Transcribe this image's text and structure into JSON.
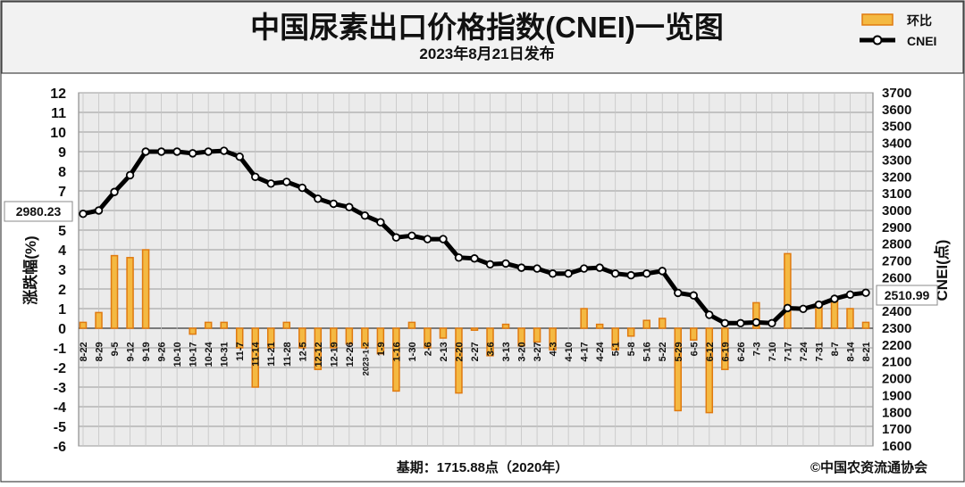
{
  "header": {
    "title": "中国尿素出口价格指数(CNEI)一览图",
    "subtitle": "2023年8月21日发布"
  },
  "legend": {
    "items": [
      {
        "label": "环比",
        "kind": "bar"
      },
      {
        "label": "CNEI",
        "kind": "line"
      }
    ],
    "placement": "top-right"
  },
  "footer": {
    "base_note": "基期：1715.88点（2020年）",
    "copyright": "©中国农资流通协会"
  },
  "callouts": {
    "start_value": "2980.23",
    "end_value": "2510.99"
  },
  "colors": {
    "header_bg": "#f2f2f2",
    "plot_bg": "#ebebeb",
    "bar_fill": "#f4b942",
    "bar_edge": "#e07a10",
    "line": "#000000",
    "marker_fill": "#ffffff"
  },
  "chart_data": {
    "type": "bar+line",
    "title": "中国尿素出口价格指数(CNEI)一览图",
    "ylabel_left": "涨跌幅(%)",
    "ylabel_right": "CNEI(点)",
    "ylim_left": [
      -6,
      12
    ],
    "ylim_right": [
      1600,
      3700
    ],
    "yticks_left": [
      12,
      11,
      10,
      9,
      8,
      7,
      6,
      5,
      4,
      3,
      2,
      1,
      0,
      -1,
      -2,
      -3,
      -4,
      -5,
      -6
    ],
    "yticks_right": [
      3700,
      3600,
      3500,
      3400,
      3300,
      3200,
      3100,
      3000,
      2900,
      2800,
      2700,
      2600,
      2500,
      2400,
      2300,
      2200,
      2100,
      2000,
      1900,
      1800,
      1700,
      1600
    ],
    "grid": true,
    "categories": [
      "8-22",
      "8-29",
      "9-5",
      "9-12",
      "9-19",
      "9-26",
      "10-10",
      "10-17",
      "10-24",
      "10-31",
      "11-7",
      "11-14",
      "11-21",
      "11-28",
      "12-5",
      "12-12",
      "12-19",
      "12-26",
      "2023-1-2",
      "1-9",
      "1-16",
      "1-30",
      "2-6",
      "2-13",
      "2-20",
      "2-27",
      "3-6",
      "3-13",
      "3-20",
      "3-27",
      "4-3",
      "4-10",
      "4-17",
      "4-24",
      "5-1",
      "5-8",
      "5-16",
      "5-22",
      "5-29",
      "6-5",
      "6-12",
      "6-19",
      "6-26",
      "7-3",
      "7-10",
      "7-17",
      "7-24",
      "7-31",
      "8-7",
      "8-14",
      "8-21"
    ],
    "series": [
      {
        "name": "环比",
        "axis": "left",
        "values": [
          0.3,
          0.8,
          3.7,
          3.6,
          4.0,
          0.0,
          0.0,
          -0.3,
          0.3,
          0.3,
          -1.0,
          -3.0,
          -1.0,
          0.3,
          -1.0,
          -2.1,
          -1.0,
          -0.8,
          -1.0,
          -1.3,
          -3.2,
          0.3,
          -1.0,
          -0.5,
          -3.3,
          -0.1,
          -1.4,
          0.2,
          -0.9,
          -0.7,
          -1.1,
          0.0,
          1.0,
          0.2,
          -1.1,
          -0.4,
          0.4,
          0.5,
          -4.2,
          -0.6,
          -4.3,
          -2.1,
          0.0,
          1.3,
          0.0,
          3.8,
          0.0,
          1.3,
          1.4,
          1.0,
          0.3
        ]
      },
      {
        "name": "CNEI",
        "axis": "right",
        "values": [
          2980.23,
          3000,
          3110,
          3210,
          3350,
          3350,
          3350,
          3340,
          3350,
          3355,
          3320,
          3200,
          3160,
          3170,
          3135,
          3070,
          3040,
          3020,
          2970,
          2930,
          2840,
          2850,
          2830,
          2830,
          2720,
          2715,
          2680,
          2685,
          2660,
          2655,
          2625,
          2625,
          2655,
          2660,
          2625,
          2615,
          2625,
          2640,
          2510,
          2495,
          2380,
          2330,
          2330,
          2335,
          2330,
          2420,
          2415,
          2440,
          2475,
          2500,
          2510.99
        ]
      }
    ]
  }
}
